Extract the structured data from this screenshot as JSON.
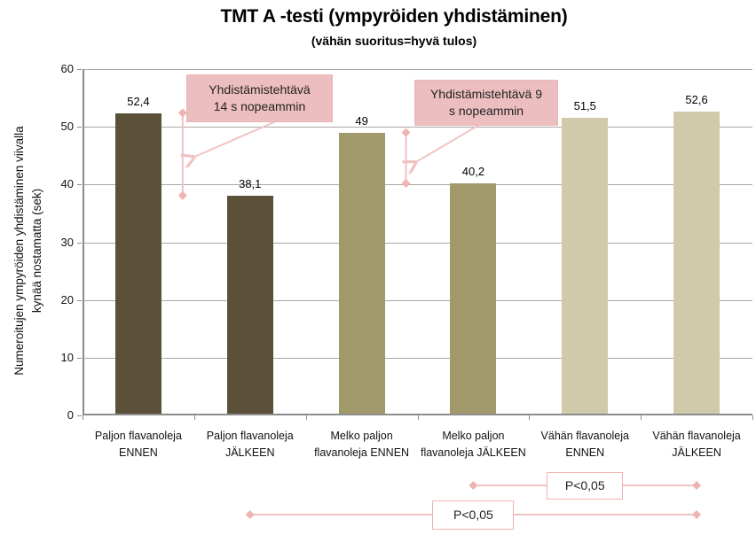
{
  "chart_data": {
    "type": "bar",
    "title": "TMT A -testi (ympyröiden yhdistäminen)",
    "subtitle": "(vähän suoritus=hyvä tulos)",
    "ylabel": "Numeroitujen ympyröiden yhdistäminen viivalla kynää nostamatta (sek)",
    "ylabel_lines": [
      "Numeroitujen ympyröiden yhdistäminen viivalla",
      "kynää nostamatta (sek)"
    ],
    "categories": [
      "Paljon flavanoleja ENNEN",
      "Paljon flavanoleja JÄLKEEN",
      "Melko paljon flavanoleja ENNEN",
      "Melko paljon flavanoleja JÄLKEEN",
      "Vähän flavanoleja ENNEN",
      "Vähän flavanoleja JÄLKEEN"
    ],
    "category_label_lines": [
      [
        "Paljon flavanoleja",
        "ENNEN"
      ],
      [
        "Paljon flavanoleja",
        "JÄLKEEN"
      ],
      [
        "Melko paljon",
        "flavanoleja ENNEN"
      ],
      [
        "Melko paljon",
        "flavanoleja JÄLKEEN"
      ],
      [
        "Vähän flavanoleja",
        "ENNEN"
      ],
      [
        "Vähän flavanoleja",
        "JÄLKEEN"
      ]
    ],
    "values": [
      52.4,
      38.1,
      49,
      40.2,
      51.5,
      52.6
    ],
    "value_labels": [
      "52,4",
      "38,1",
      "49",
      "40,2",
      "51,5",
      "52,6"
    ],
    "ylim": [
      0,
      60
    ],
    "yticks": [
      0,
      10,
      20,
      30,
      40,
      50,
      60
    ],
    "ytick_labels": [
      "0",
      "10",
      "20",
      "30",
      "40",
      "50",
      "60"
    ],
    "grid": true,
    "legend": "none",
    "bar_colors": [
      "#5A5138",
      "#5A5138",
      "#A2996A",
      "#A2996A",
      "#D0C9AA",
      "#D0C9AA"
    ],
    "annotations": {
      "callouts": [
        {
          "text": "Yhdistämistehtävä 14 s nopeammin",
          "lines": [
            "Yhdistämistehtävä",
            "14 s nopeammin"
          ],
          "between_categories": [
            0,
            1
          ],
          "from_value": 52.4,
          "to_value": 38.1
        },
        {
          "text": "Yhdistämistehtävä 9 s nopeammin",
          "lines": [
            "Yhdistämistehtävä 9",
            "s nopeammin"
          ],
          "between_categories": [
            2,
            3
          ],
          "from_value": 49,
          "to_value": 40.2
        }
      ],
      "brackets": [
        {
          "label": "P<0,05",
          "from_category": 3,
          "to_category": 5
        },
        {
          "label": "P<0,05",
          "from_category": 1,
          "to_category": 5
        }
      ]
    },
    "colors": {
      "callout_fill": "#EDBEBF",
      "callout_line": "#F0C3C2",
      "callout_diamond": "#EDB4B3",
      "bracket_border": "#F2B2B0",
      "grid": "#A8A8A8",
      "axis": "#8C8C8C"
    }
  }
}
